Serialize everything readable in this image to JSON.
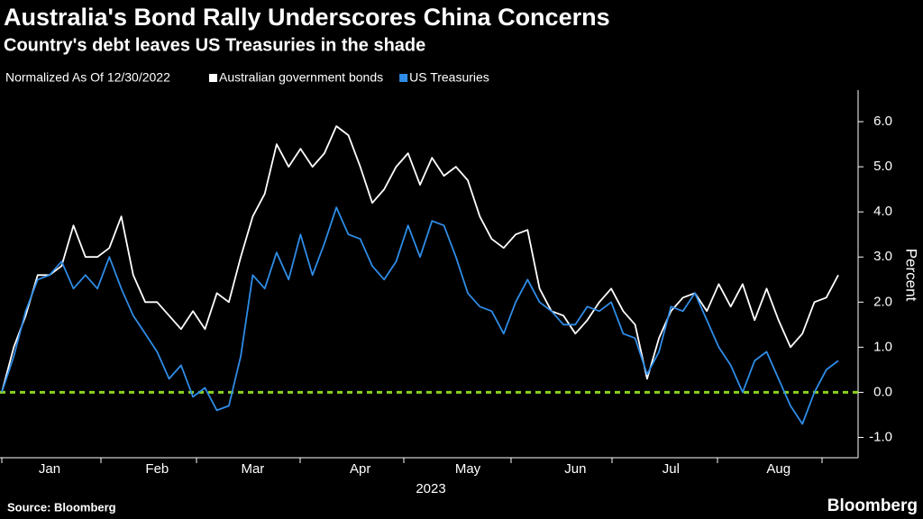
{
  "chart_data": {
    "type": "line",
    "title": "Australia's Bond Rally Underscores China Concerns",
    "subtitle": "Country's debt leaves US Treasuries in the shade",
    "legend_note": "Normalized As Of 12/30/2022",
    "y_label": "Percent",
    "x_label": "2023",
    "source": "Source: Bloomberg",
    "brand": "Bloomberg",
    "categories": [
      null,
      null,
      null,
      null,
      "Jan",
      null,
      null,
      null,
      null,
      null,
      null,
      null,
      null,
      "Feb",
      null,
      null,
      null,
      null,
      null,
      null,
      null,
      "Mar",
      null,
      null,
      null,
      null,
      null,
      null,
      null,
      null,
      "Apr",
      null,
      null,
      null,
      null,
      null,
      null,
      null,
      null,
      "May",
      null,
      null,
      null,
      null,
      null,
      null,
      null,
      null,
      "Jun",
      null,
      null,
      null,
      null,
      null,
      null,
      null,
      "Jul",
      null,
      null,
      null,
      null,
      null,
      null,
      null,
      null,
      "Aug",
      null,
      null,
      null,
      null,
      null
    ],
    "series": [
      {
        "name": "Australian government bonds",
        "color": "#ffffff",
        "values": [
          0.0,
          1.0,
          1.7,
          2.6,
          2.6,
          2.8,
          3.7,
          3.0,
          3.0,
          3.2,
          3.9,
          2.6,
          2.0,
          2.0,
          1.7,
          1.4,
          1.8,
          1.4,
          2.2,
          2.0,
          3.0,
          3.9,
          4.4,
          5.5,
          5.0,
          5.4,
          5.0,
          5.3,
          5.9,
          5.7,
          5.0,
          4.2,
          4.5,
          5.0,
          5.3,
          4.6,
          5.2,
          4.8,
          5.0,
          4.7,
          3.9,
          3.4,
          3.2,
          3.5,
          3.6,
          2.3,
          1.8,
          1.7,
          1.3,
          1.6,
          2.0,
          2.3,
          1.8,
          1.5,
          0.3,
          1.2,
          1.8,
          2.1,
          2.2,
          1.8,
          2.4,
          1.9,
          2.4,
          1.6,
          2.3,
          1.6,
          1.0,
          1.3,
          2.0,
          2.1,
          2.6
        ]
      },
      {
        "name": "US Treasuries",
        "color": "#2f8ce6",
        "values": [
          0.0,
          0.8,
          1.8,
          2.5,
          2.6,
          2.9,
          2.3,
          2.6,
          2.3,
          3.0,
          2.3,
          1.7,
          1.3,
          0.9,
          0.3,
          0.6,
          -0.1,
          0.1,
          -0.4,
          -0.3,
          0.8,
          2.6,
          2.3,
          3.1,
          2.5,
          3.5,
          2.6,
          3.3,
          4.1,
          3.5,
          3.4,
          2.8,
          2.5,
          2.9,
          3.7,
          3.0,
          3.8,
          3.7,
          3.0,
          2.2,
          1.9,
          1.8,
          1.3,
          2.0,
          2.5,
          2.0,
          1.8,
          1.5,
          1.5,
          1.9,
          1.8,
          2.0,
          1.3,
          1.2,
          0.4,
          0.9,
          1.9,
          1.8,
          2.2,
          1.6,
          1.0,
          0.6,
          0.0,
          0.7,
          0.9,
          0.3,
          -0.3,
          -0.7,
          0.0,
          0.5,
          0.7
        ]
      }
    ],
    "ylim": [
      -1.45,
      6.7
    ],
    "yticks": [
      {
        "value": -1,
        "label": "-1.0"
      },
      {
        "value": 0,
        "label": "0.0"
      },
      {
        "value": 1,
        "label": "1.0"
      },
      {
        "value": 2,
        "label": "2.0"
      },
      {
        "value": 3,
        "label": "3.0"
      },
      {
        "value": 4,
        "label": "4.0"
      },
      {
        "value": 5,
        "label": "5.0"
      },
      {
        "value": 6,
        "label": "6.0"
      }
    ],
    "reference_line": {
      "value": 0,
      "color": "#8bd320"
    }
  }
}
